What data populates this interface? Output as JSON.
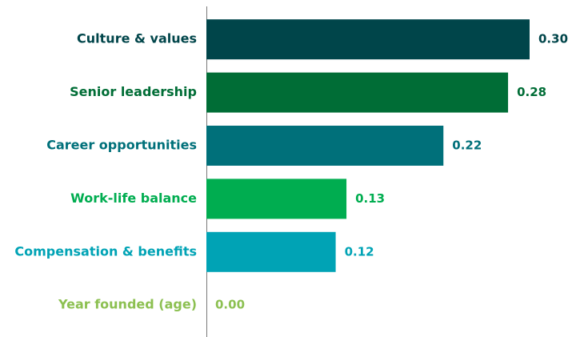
{
  "chart_data": {
    "type": "bar",
    "orientation": "horizontal",
    "categories": [
      "Culture & values",
      "Senior leadership",
      "Career opportunities",
      "Work-life balance",
      "Compensation & benefits",
      "Year founded (age)"
    ],
    "values": [
      0.3,
      0.28,
      0.22,
      0.13,
      0.12,
      0.0
    ],
    "value_labels": [
      "0.30",
      "0.28",
      "0.22",
      "0.13",
      "0.12",
      "0.00"
    ],
    "colors": [
      "#00454a",
      "#006d36",
      "#00707a",
      "#00ad50",
      "#00a3b5",
      "#8cc051"
    ]
  }
}
